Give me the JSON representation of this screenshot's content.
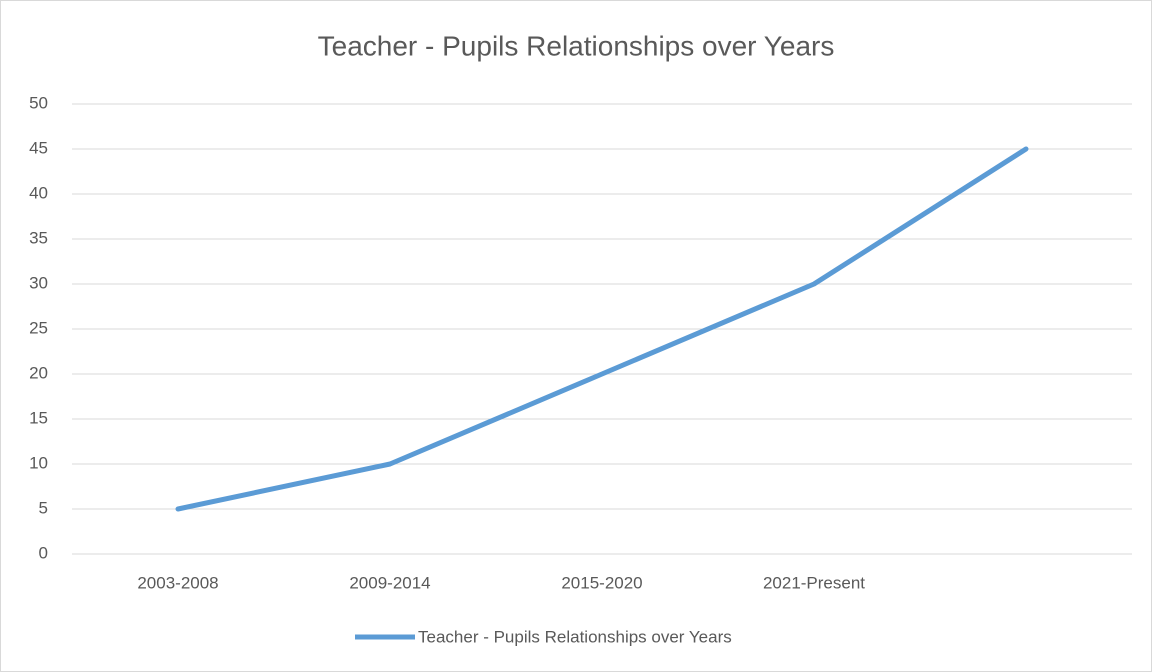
{
  "chart_data": {
    "type": "line",
    "title": "Teacher - Pupils Relationships over Years",
    "categories": [
      "2003-2008",
      "2009-2014",
      "2015-2020",
      "2021-Present",
      null
    ],
    "series": [
      {
        "name": "Teacher - Pupils Relationships over Years",
        "color": "#5b9bd5",
        "values": [
          5,
          10,
          20,
          30,
          45
        ]
      }
    ],
    "ylim": [
      0,
      50
    ],
    "yticks": [
      0,
      5,
      10,
      15,
      20,
      25,
      30,
      35,
      40,
      45,
      50
    ],
    "grid": true,
    "legend": "bottom"
  }
}
